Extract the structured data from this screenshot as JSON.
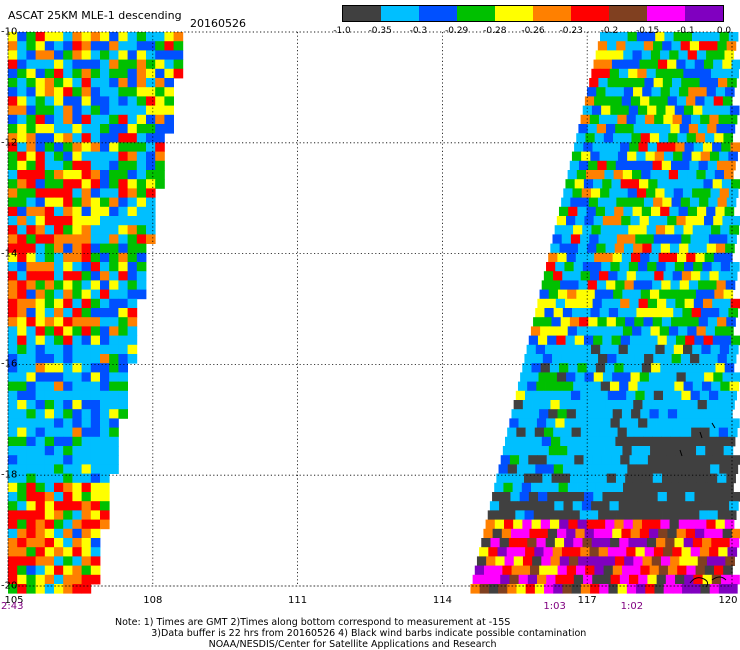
{
  "header": {
    "title": "ASCAT 25KM MLE-1 descending",
    "date": "20160526"
  },
  "colorbar": {
    "colors": [
      "#404040",
      "#00bfff",
      "#0050ff",
      "#00c000",
      "#ffff00",
      "#ff8000",
      "#ff0000",
      "#804020",
      "#ff00ff",
      "#8000c0"
    ],
    "ticks": [
      "-1.0",
      "-0.35",
      "-0.3",
      "-0.29",
      "-0.28",
      "-0.26",
      "-0.23",
      "-0.2",
      "-0.15",
      "-0.1",
      "0.0"
    ]
  },
  "axes": {
    "x_ticks": [
      "105",
      "108",
      "111",
      "114",
      "117",
      "120"
    ],
    "y_ticks": [
      "-10",
      "-12",
      "-14",
      "-16",
      "-18",
      "-20"
    ]
  },
  "times": [
    {
      "label": "2:43",
      "lon": 105
    },
    {
      "label": "1:03",
      "lon": 116.3
    },
    {
      "label": "1:02",
      "lon": 117.9
    }
  ],
  "note": {
    "line1": "Note: 1) Times are GMT 2)Times along bottom correspond to measurement at -15S",
    "line2": "3)Data buffer is 22 hrs from 20160526 4) Black wind barbs indicate possible contamination",
    "line3": "NOAA/NESDIS/Center for Satellite Applications and Research"
  }
}
